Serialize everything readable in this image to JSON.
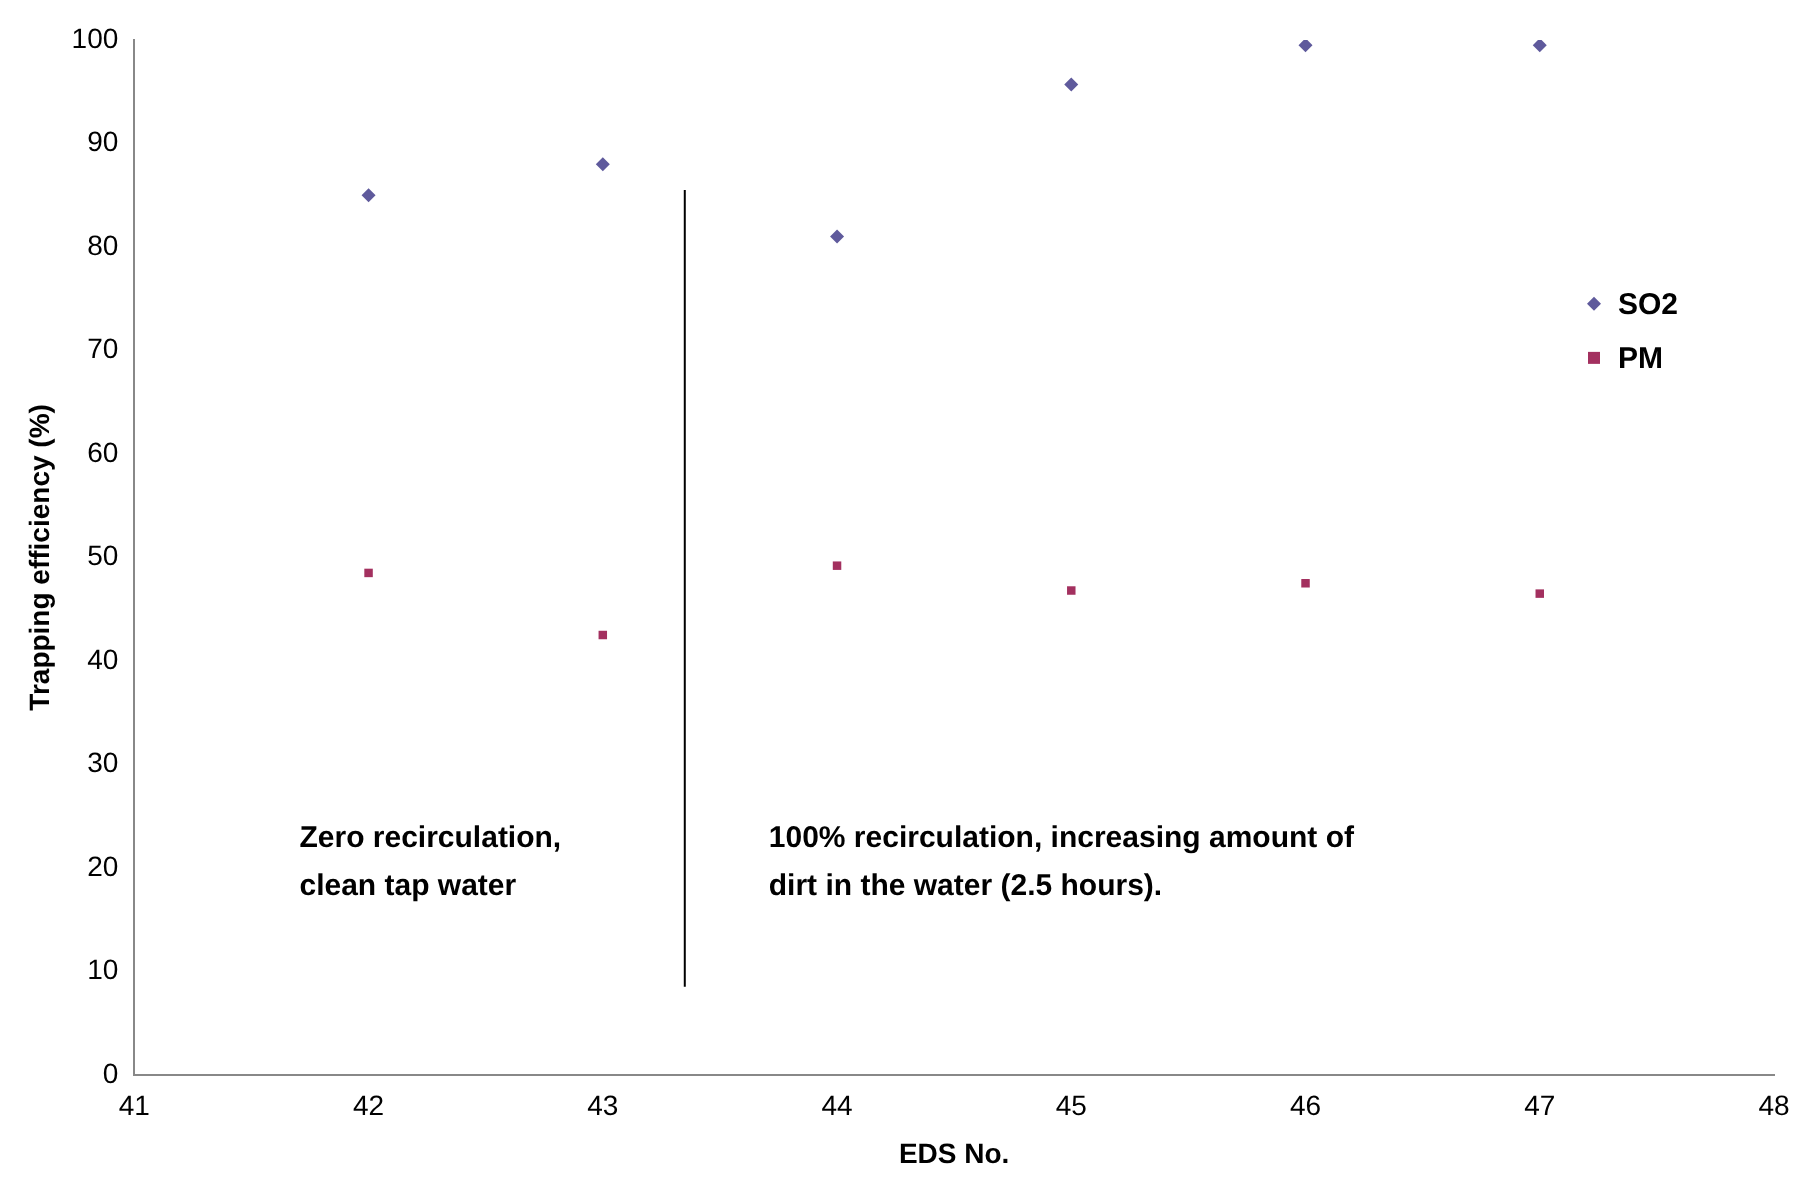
{
  "chart_data": {
    "type": "scatter",
    "xlabel": "EDS No.",
    "ylabel": "Trapping efficiency (%)",
    "x": [
      42,
      43,
      44,
      45,
      46,
      47
    ],
    "series": [
      {
        "name": "SO2",
        "color": "#5f5a9c",
        "marker": "diamond",
        "values": [
          85,
          88,
          81,
          95.7,
          99.5,
          99.5
        ]
      },
      {
        "name": "PM",
        "color": "#a3305f",
        "marker": "square",
        "values": [
          48.5,
          42.5,
          49.2,
          46.8,
          47.5,
          46.5
        ]
      }
    ],
    "xlim": [
      41,
      48
    ],
    "xticks": [
      41,
      42,
      43,
      44,
      45,
      46,
      47,
      48
    ],
    "ylim": [
      0,
      100
    ],
    "yticks": [
      0,
      10,
      20,
      30,
      40,
      50,
      60,
      70,
      80,
      90,
      100
    ],
    "grid": false,
    "legend": "right",
    "ref_lines": [
      {
        "axis": "x",
        "value": 43.35,
        "color": "#000000"
      }
    ],
    "annotations": [
      "Zero recirculation,\nclean tap water",
      "100% recirculation, increasing amount of\ndirt in the water (2.5 hours)."
    ]
  }
}
